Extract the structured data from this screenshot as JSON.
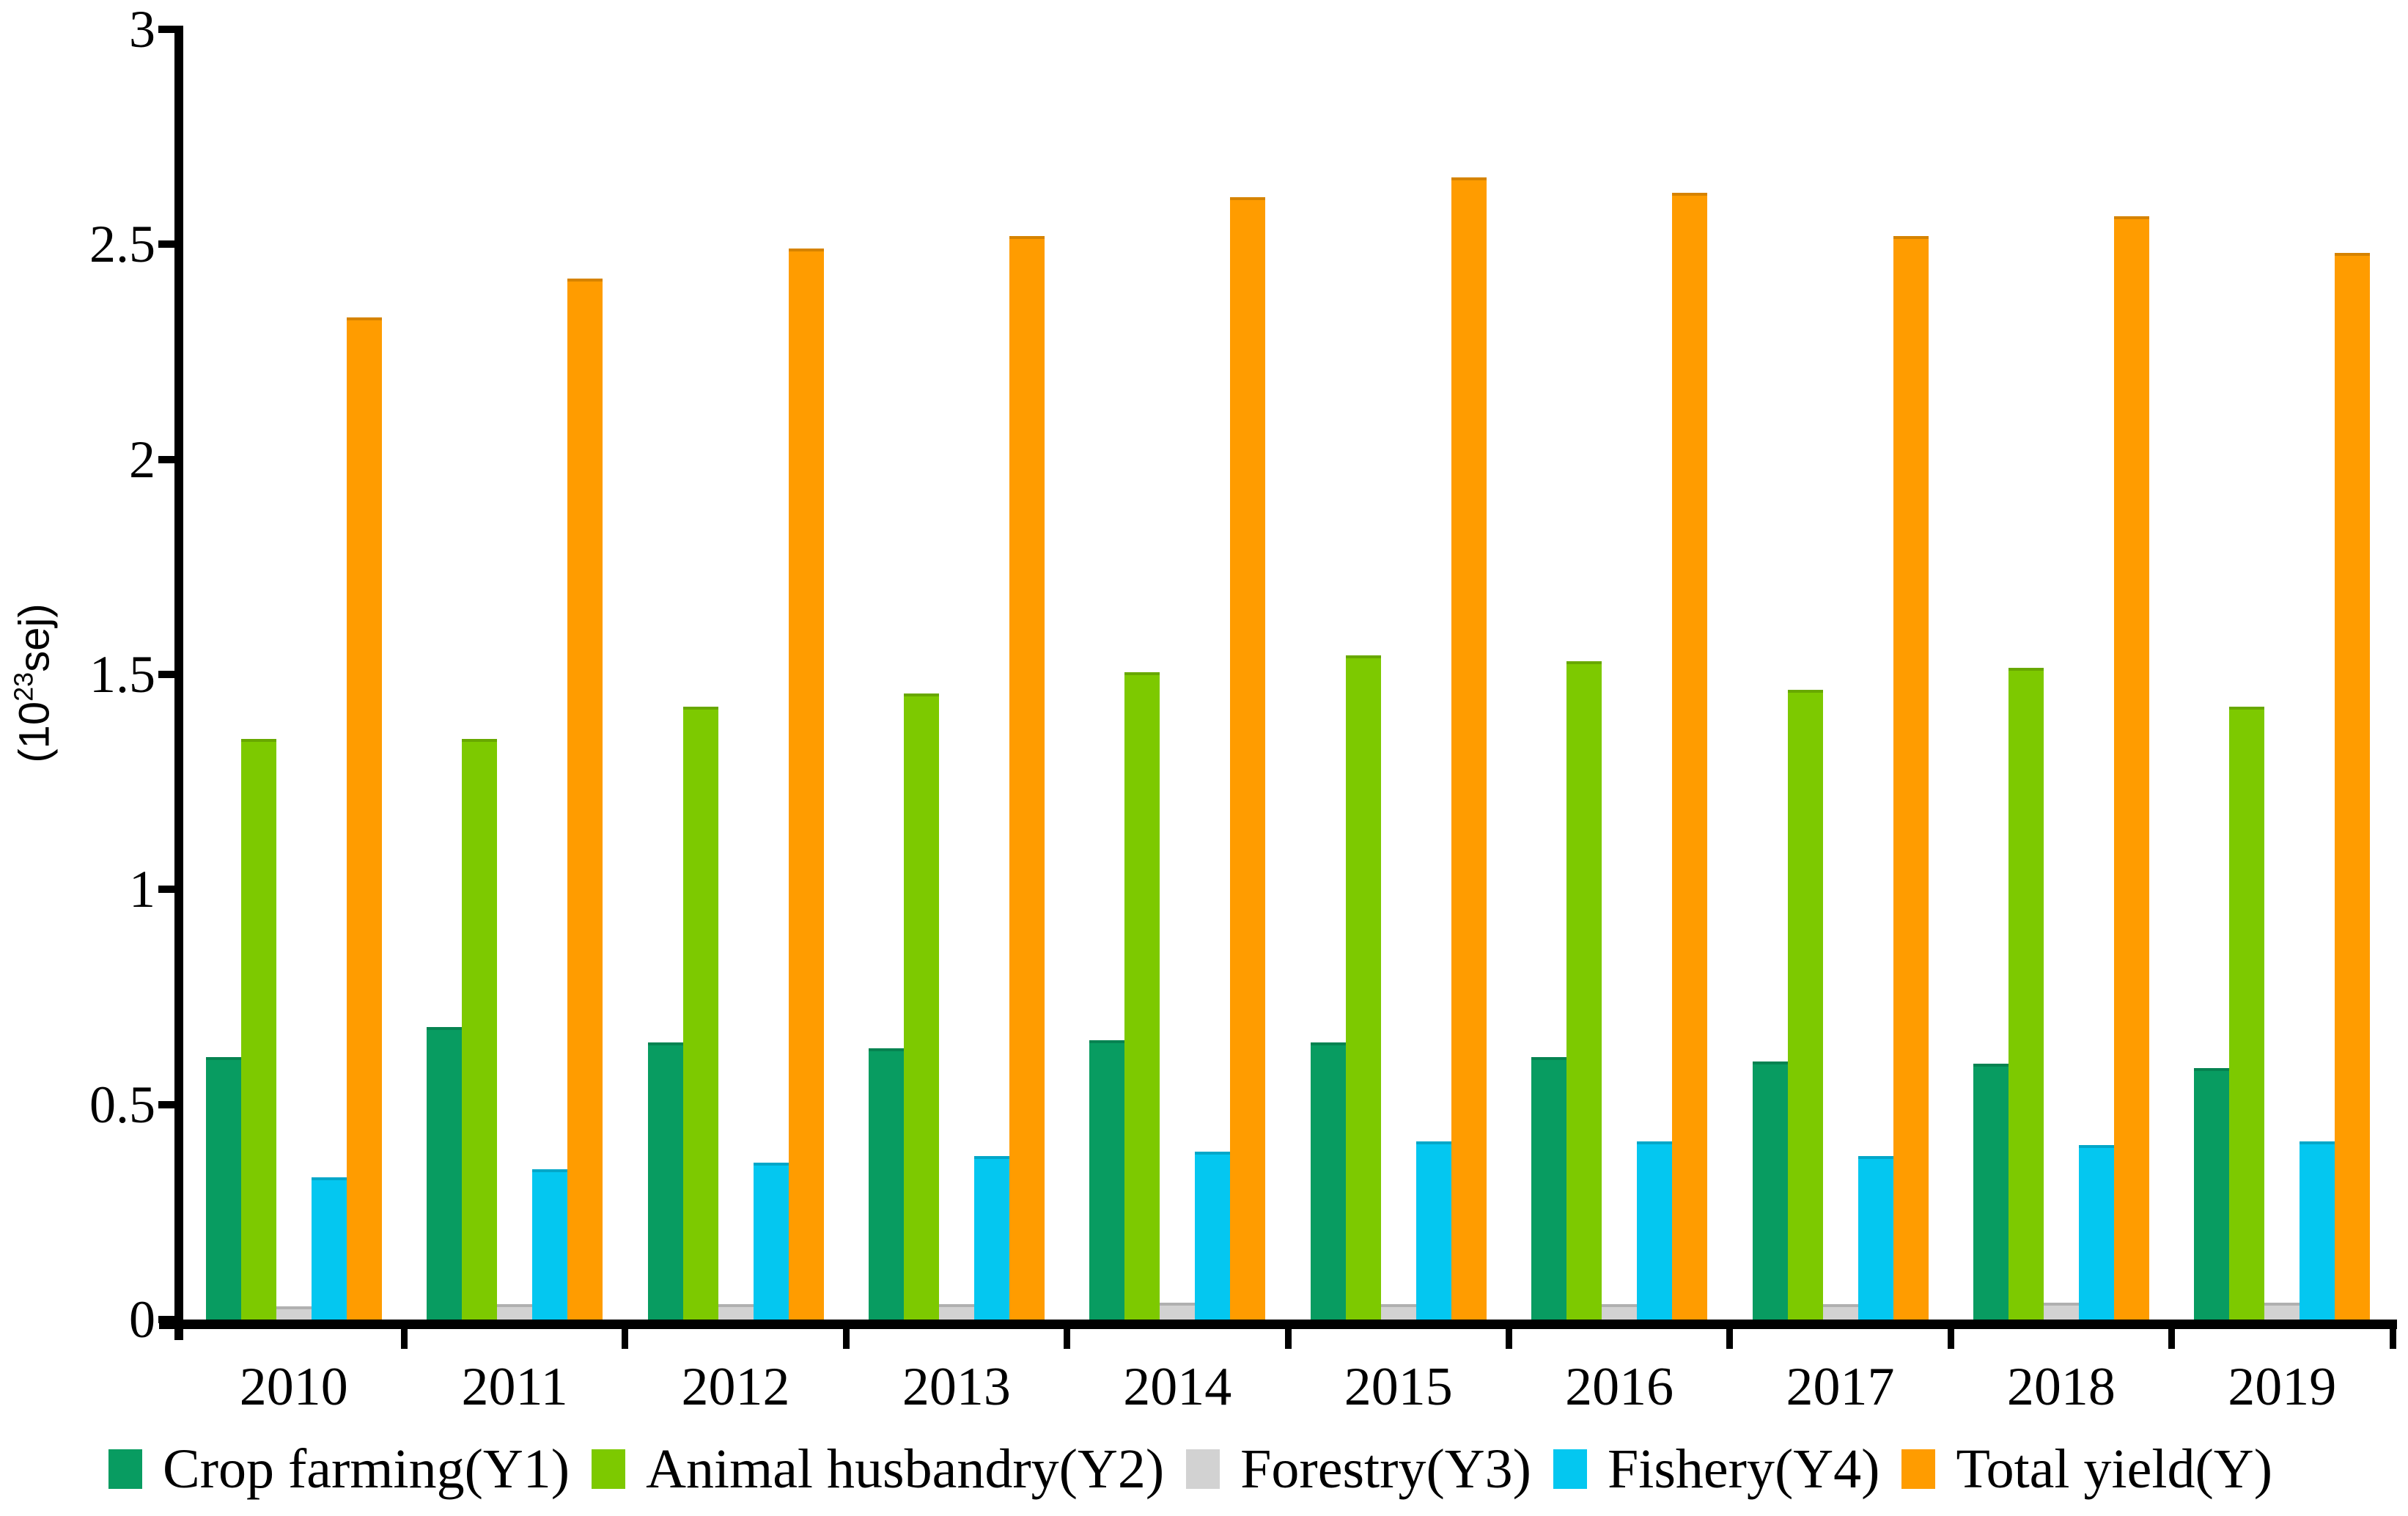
{
  "figure": {
    "background": "#ffffff",
    "text_color": "#000000"
  },
  "y_axis": {
    "unit_prefix": "(10",
    "unit_exponent": "23",
    "unit_suffix": "sej)",
    "tick_values": [
      0,
      0.5,
      1,
      1.5,
      2,
      2.5,
      3
    ],
    "tick_labels": [
      "0",
      "0.5",
      "1",
      "1.5",
      "2",
      "2.5",
      "3"
    ]
  },
  "chart_data": {
    "type": "bar",
    "title": "",
    "xlabel": "",
    "ylabel": "(10^23 sej)",
    "ylim": [
      0,
      3
    ],
    "ytick_step": 0.5,
    "grid": false,
    "legend_position": "bottom",
    "categories": [
      "2010",
      "2011",
      "2012",
      "2013",
      "2014",
      "2015",
      "2016",
      "2017",
      "2018",
      "2019"
    ],
    "series": [
      {
        "name": "Crop farming(Y1)",
        "color": "#089C61",
        "values": [
          0.61,
          0.68,
          0.645,
          0.63,
          0.65,
          0.645,
          0.61,
          0.6,
          0.595,
          0.585
        ]
      },
      {
        "name": "Animal husbandry(Y2)",
        "color": "#7DC900",
        "values": [
          1.35,
          1.35,
          1.425,
          1.455,
          1.505,
          1.545,
          1.53,
          1.465,
          1.515,
          1.425
        ]
      },
      {
        "name": "Forestry(Y3)",
        "color": "#D2D2D2",
        "values": [
          0.03,
          0.035,
          0.035,
          0.035,
          0.04,
          0.035,
          0.035,
          0.035,
          0.04,
          0.04
        ]
      },
      {
        "name": "Fishery(Y4)",
        "color": "#04C7F0",
        "values": [
          0.33,
          0.35,
          0.365,
          0.38,
          0.39,
          0.415,
          0.415,
          0.38,
          0.405,
          0.415
        ]
      },
      {
        "name": "Total yield(Y)",
        "color": "#FF9C00",
        "values": [
          2.33,
          2.42,
          2.49,
          2.52,
          2.61,
          2.655,
          2.62,
          2.52,
          2.565,
          2.48
        ]
      }
    ]
  }
}
